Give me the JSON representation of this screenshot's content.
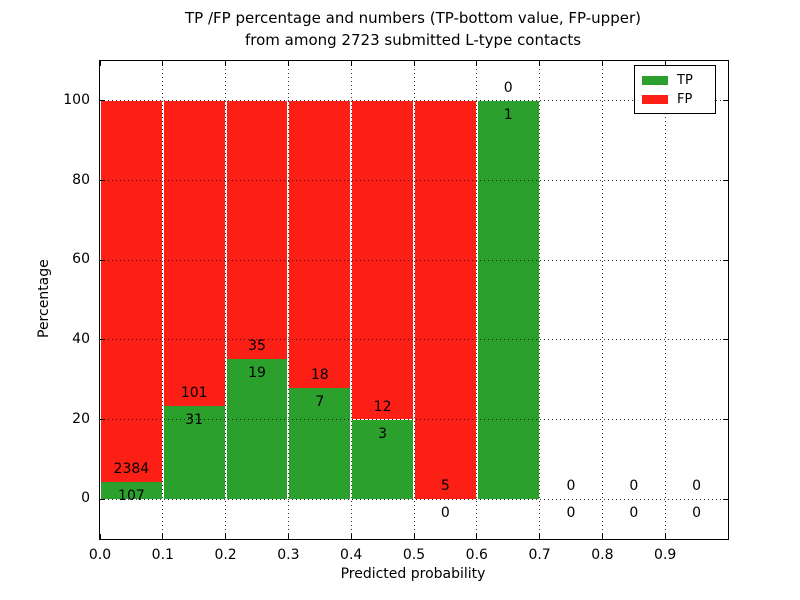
{
  "figure": {
    "title_line1": "TP /FP percentage and numbers (TP-bottom value, FP-upper)",
    "title_line2": "from among 2723 submitted L-type contacts"
  },
  "chart_data": {
    "type": "bar",
    "stacked": true,
    "title": "TP /FP percentage and numbers (TP-bottom value, FP-upper)\nfrom among 2723 submitted L-type contacts",
    "submitted_total": 2723,
    "xlabel": "Predicted probability",
    "ylabel": "Percentage",
    "xlim": [
      0.0,
      1.0
    ],
    "ylim": [
      -10,
      110
    ],
    "x_ticks": [
      "0.0",
      "0.1",
      "0.2",
      "0.3",
      "0.4",
      "0.5",
      "0.6",
      "0.7",
      "0.8",
      "0.9"
    ],
    "y_ticks": [
      0,
      20,
      40,
      60,
      80,
      100
    ],
    "grid": true,
    "grid_style": "dotted",
    "legend_position": "upper right",
    "series": [
      {
        "name": "TP",
        "color": "#2ca02c"
      },
      {
        "name": "FP",
        "color": "#fb1f15"
      }
    ],
    "bins": [
      {
        "x_start": 0.0,
        "x_end": 0.1,
        "tp": 107,
        "fp": 2384,
        "tp_pct": 4.3,
        "fp_pct": 95.7
      },
      {
        "x_start": 0.1,
        "x_end": 0.2,
        "tp": 31,
        "fp": 101,
        "tp_pct": 23.5,
        "fp_pct": 76.5
      },
      {
        "x_start": 0.2,
        "x_end": 0.3,
        "tp": 19,
        "fp": 35,
        "tp_pct": 35.2,
        "fp_pct": 64.8
      },
      {
        "x_start": 0.3,
        "x_end": 0.4,
        "tp": 7,
        "fp": 18,
        "tp_pct": 28.0,
        "fp_pct": 72.0
      },
      {
        "x_start": 0.4,
        "x_end": 0.5,
        "tp": 3,
        "fp": 12,
        "tp_pct": 20.0,
        "fp_pct": 80.0
      },
      {
        "x_start": 0.5,
        "x_end": 0.6,
        "tp": 0,
        "fp": 5,
        "tp_pct": 0.0,
        "fp_pct": 100.0
      },
      {
        "x_start": 0.6,
        "x_end": 0.7,
        "tp": 1,
        "fp": 0,
        "tp_pct": 100.0,
        "fp_pct": 0.0
      },
      {
        "x_start": 0.7,
        "x_end": 0.8,
        "tp": 0,
        "fp": 0,
        "tp_pct": null,
        "fp_pct": null
      },
      {
        "x_start": 0.8,
        "x_end": 0.9,
        "tp": 0,
        "fp": 0,
        "tp_pct": null,
        "fp_pct": null
      },
      {
        "x_start": 0.9,
        "x_end": 1.0,
        "tp": 0,
        "fp": 0,
        "tp_pct": null,
        "fp_pct": null
      }
    ]
  },
  "colors": {
    "background": "#ffffff",
    "text": "#000000",
    "spine": "#000000",
    "tp_green": "#2ca02c",
    "fp_red": "#fb1f15"
  }
}
